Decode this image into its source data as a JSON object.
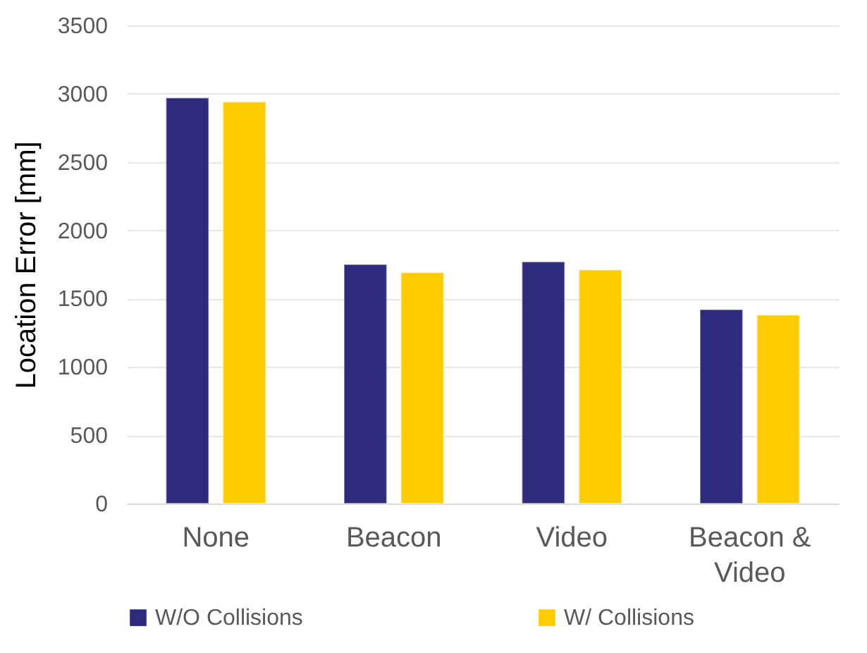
{
  "chart_data": {
    "type": "bar",
    "ylabel": "Location Error [mm]",
    "categories": [
      "None",
      "Beacon",
      "Video",
      "Beacon & Video"
    ],
    "series": [
      {
        "name": "W/O Collisions",
        "color": "#2e2a7e",
        "values": [
          2970,
          1750,
          1770,
          1420
        ]
      },
      {
        "name": "W/ Collisions",
        "color": "#ffcc00",
        "values": [
          2940,
          1690,
          1710,
          1380
        ]
      }
    ],
    "ylim": [
      0,
      3500
    ],
    "yticks": [
      0,
      500,
      1000,
      1500,
      2000,
      2500,
      3000,
      3500
    ],
    "grid": "y",
    "legend": "bottom"
  }
}
